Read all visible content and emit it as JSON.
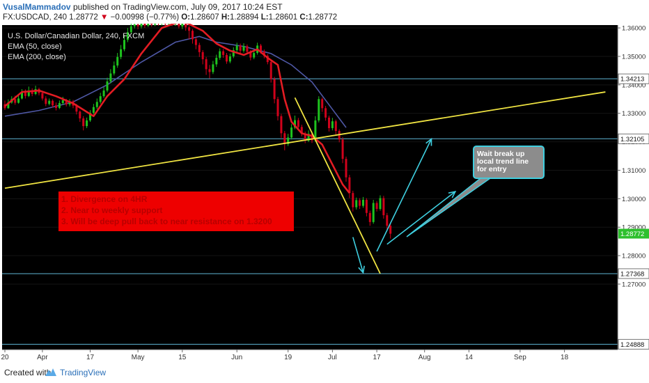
{
  "header": {
    "author": "VusalMammadov",
    "published": "published on TradingView.com, July 09, 2017 10:24 EST",
    "symbol": "FX:USDCAD, 240",
    "last": "1.28772",
    "change": "−0.00998 (−0.77%)",
    "o_label": "O:",
    "o_value": "1.28607",
    "h_label": "H:",
    "h_value": "1.28894",
    "l_label": "L:",
    "l_value": "1.28601",
    "c_label": "C:",
    "c_value": "1.28772"
  },
  "legend": {
    "instrument": "U.S. Dollar/Canadian Dollar, 240, FXCM",
    "ema50": "EMA (50, close)",
    "ema200": "EMA (200, close)"
  },
  "annotations": {
    "red_box": [
      "1. Divergence on 4HR",
      "2. Near to weekly support",
      "3. Will be deep pull back to near resistance on 1.3200"
    ],
    "note_box": [
      "Wait break up",
      "local trend line",
      "for entry"
    ]
  },
  "footer": {
    "created_with": "Created with",
    "brand": "TradingView"
  },
  "colors": {
    "background": "#000000",
    "up": "#1ec31e",
    "down": "#d0021b",
    "ema50": "#e31c23",
    "ema200": "#4f58a6",
    "trendline": "#f0e442",
    "level": "#5fb6d6",
    "arrow": "#3fcfe0",
    "note_bg": "#8c8c8c"
  },
  "chart_data": {
    "type": "candlestick",
    "ylim": [
      1.247,
      1.361
    ],
    "y_ticks": [
      1.27,
      1.28,
      1.29,
      1.3,
      1.31,
      1.32,
      1.33,
      1.34,
      1.35,
      1.36
    ],
    "y_tick_labels": [
      "1.27000",
      "1.28000",
      "1.29000",
      "1.30000",
      "1.31000",
      "1.32000",
      "1.33000",
      "1.34000",
      "1.35000",
      "1.36000"
    ],
    "x_ticks": [
      {
        "label": "20",
        "t": 0
      },
      {
        "label": "Apr",
        "t": 11
      },
      {
        "label": "17",
        "t": 25
      },
      {
        "label": "May",
        "t": 39
      },
      {
        "label": "15",
        "t": 52
      },
      {
        "label": "Jun",
        "t": 68
      },
      {
        "label": "19",
        "t": 83
      },
      {
        "label": "Jul",
        "t": 96
      },
      {
        "label": "17",
        "t": 109
      },
      {
        "label": "Aug",
        "t": 123
      },
      {
        "label": "14",
        "t": 136
      },
      {
        "label": "Sep",
        "t": 151
      },
      {
        "label": "18",
        "t": 164
      }
    ],
    "current_price": {
      "label": "1.28772",
      "value": 1.28772
    },
    "levels": [
      {
        "label": "1.34213",
        "value": 1.34213
      },
      {
        "label": "1.32105",
        "value": 1.32105
      },
      {
        "label": "1.27368",
        "value": 1.27368
      },
      {
        "label": "1.24888",
        "value": 1.24888
      }
    ],
    "trend_lines": [
      {
        "name": "support",
        "from": [
          0,
          1.3037
        ],
        "to": [
          176,
          1.3375
        ]
      },
      {
        "name": "local",
        "from": [
          85,
          1.3355
        ],
        "to": [
          110,
          1.2737
        ]
      }
    ],
    "arrows": [
      {
        "from": [
          102,
          1.2865
        ],
        "to": [
          105,
          1.274
        ]
      },
      {
        "from": [
          109,
          1.2815
        ],
        "to": [
          125,
          1.321
        ]
      },
      {
        "from": [
          112,
          1.284
        ],
        "to": [
          132,
          1.3025
        ]
      }
    ],
    "ema50": [
      [
        0,
        1.3325
      ],
      [
        5,
        1.3375
      ],
      [
        10,
        1.338
      ],
      [
        15,
        1.336
      ],
      [
        20,
        1.3335
      ],
      [
        26,
        1.329
      ],
      [
        30,
        1.336
      ],
      [
        35,
        1.342
      ],
      [
        40,
        1.351
      ],
      [
        46,
        1.36
      ],
      [
        52,
        1.3625
      ],
      [
        58,
        1.359
      ],
      [
        62,
        1.3545
      ],
      [
        66,
        1.352
      ],
      [
        70,
        1.3505
      ],
      [
        74,
        1.3525
      ],
      [
        77,
        1.3495
      ],
      [
        80,
        1.347
      ],
      [
        82,
        1.335
      ],
      [
        84,
        1.327
      ],
      [
        87,
        1.323
      ],
      [
        90,
        1.322
      ],
      [
        93,
        1.319
      ],
      [
        96,
        1.312
      ],
      [
        99,
        1.305
      ],
      [
        101,
        1.302
      ]
    ],
    "ema200": [
      [
        0,
        1.329
      ],
      [
        10,
        1.331
      ],
      [
        20,
        1.334
      ],
      [
        30,
        1.34
      ],
      [
        40,
        1.348
      ],
      [
        50,
        1.355
      ],
      [
        57,
        1.357
      ],
      [
        62,
        1.355
      ],
      [
        70,
        1.3535
      ],
      [
        78,
        1.351
      ],
      [
        84,
        1.347
      ],
      [
        90,
        1.341
      ],
      [
        95,
        1.333
      ],
      [
        100,
        1.325
      ]
    ],
    "candles": [
      [
        0,
        1.3332,
        1.3318,
        1.3345,
        1.3312
      ],
      [
        1,
        1.3318,
        1.3338,
        1.3349,
        1.3316
      ],
      [
        2,
        1.3338,
        1.335,
        1.336,
        1.3334
      ],
      [
        3,
        1.335,
        1.3337,
        1.3362,
        1.333
      ],
      [
        4,
        1.3337,
        1.3352,
        1.3364,
        1.3334
      ],
      [
        5,
        1.3352,
        1.3374,
        1.3385,
        1.3349
      ],
      [
        6,
        1.3374,
        1.3361,
        1.3384,
        1.3352
      ],
      [
        7,
        1.3361,
        1.338,
        1.3394,
        1.3357
      ],
      [
        8,
        1.338,
        1.3368,
        1.3388,
        1.336
      ],
      [
        9,
        1.3368,
        1.3385,
        1.3397,
        1.3364
      ],
      [
        10,
        1.3385,
        1.3371,
        1.339,
        1.3363
      ],
      [
        11,
        1.3371,
        1.3352,
        1.3378,
        1.3345
      ],
      [
        12,
        1.3352,
        1.3333,
        1.336,
        1.3325
      ],
      [
        13,
        1.3333,
        1.3344,
        1.3352,
        1.3328
      ],
      [
        14,
        1.3344,
        1.3328,
        1.3349,
        1.332
      ],
      [
        15,
        1.3328,
        1.3319,
        1.3338,
        1.331
      ],
      [
        16,
        1.3319,
        1.3336,
        1.3345,
        1.3315
      ],
      [
        17,
        1.3336,
        1.3346,
        1.3358,
        1.333
      ],
      [
        18,
        1.3346,
        1.3331,
        1.3351,
        1.3324
      ],
      [
        19,
        1.3331,
        1.3342,
        1.335,
        1.3324
      ],
      [
        20,
        1.3342,
        1.3327,
        1.3347,
        1.3318
      ],
      [
        21,
        1.3327,
        1.3306,
        1.3333,
        1.3296
      ],
      [
        22,
        1.3306,
        1.3282,
        1.331,
        1.327
      ],
      [
        23,
        1.3282,
        1.3255,
        1.329,
        1.324
      ],
      [
        24,
        1.3255,
        1.3275,
        1.3285,
        1.3248
      ],
      [
        25,
        1.3275,
        1.3302,
        1.3311,
        1.327
      ],
      [
        26,
        1.3302,
        1.3322,
        1.3333,
        1.3296
      ],
      [
        27,
        1.3322,
        1.334,
        1.3352,
        1.3315
      ],
      [
        28,
        1.334,
        1.336,
        1.3372,
        1.3334
      ],
      [
        29,
        1.336,
        1.338,
        1.3392,
        1.3354
      ],
      [
        30,
        1.338,
        1.3412,
        1.3425,
        1.3374
      ],
      [
        31,
        1.3412,
        1.344,
        1.3455,
        1.3405
      ],
      [
        32,
        1.344,
        1.3468,
        1.3482,
        1.3433
      ],
      [
        33,
        1.3468,
        1.3498,
        1.3512,
        1.346
      ],
      [
        34,
        1.3498,
        1.3525,
        1.354,
        1.349
      ],
      [
        35,
        1.3525,
        1.3558,
        1.3575,
        1.3518
      ],
      [
        36,
        1.3558,
        1.3585,
        1.36,
        1.355
      ],
      [
        37,
        1.3585,
        1.3606,
        1.3615,
        1.3578
      ],
      [
        38,
        1.3606,
        1.3612,
        1.3618,
        1.3598
      ],
      [
        39,
        1.3612,
        1.3605,
        1.3616,
        1.3595
      ],
      [
        40,
        1.3605,
        1.3618,
        1.3625,
        1.3598
      ],
      [
        41,
        1.3618,
        1.3608,
        1.3622,
        1.36
      ],
      [
        42,
        1.3608,
        1.362,
        1.3626,
        1.3603
      ],
      [
        43,
        1.362,
        1.3612,
        1.3624,
        1.3604
      ],
      [
        44,
        1.3612,
        1.3622,
        1.3627,
        1.3606
      ],
      [
        45,
        1.3622,
        1.3615,
        1.3628,
        1.3608
      ],
      [
        46,
        1.3615,
        1.3621,
        1.3627,
        1.3609
      ],
      [
        47,
        1.3621,
        1.3614,
        1.3626,
        1.3607
      ],
      [
        48,
        1.3614,
        1.362,
        1.3626,
        1.3609
      ],
      [
        49,
        1.362,
        1.3613,
        1.3625,
        1.3606
      ],
      [
        50,
        1.3613,
        1.3619,
        1.3624,
        1.3607
      ],
      [
        51,
        1.3619,
        1.3605,
        1.3622,
        1.3598
      ],
      [
        52,
        1.3605,
        1.3617,
        1.3623,
        1.3596
      ],
      [
        53,
        1.3617,
        1.3602,
        1.3621,
        1.359
      ],
      [
        54,
        1.3602,
        1.359,
        1.3608,
        1.356
      ],
      [
        55,
        1.359,
        1.356,
        1.3596,
        1.3545
      ],
      [
        56,
        1.356,
        1.354,
        1.3567,
        1.3525
      ],
      [
        57,
        1.354,
        1.3515,
        1.3548,
        1.3498
      ],
      [
        58,
        1.3515,
        1.349,
        1.3522,
        1.3472
      ],
      [
        59,
        1.349,
        1.3455,
        1.3498,
        1.3435
      ],
      [
        60,
        1.3455,
        1.3445,
        1.347,
        1.3423
      ],
      [
        61,
        1.3445,
        1.3472,
        1.3484,
        1.3438
      ],
      [
        62,
        1.3472,
        1.3495,
        1.3506,
        1.3463
      ],
      [
        63,
        1.3495,
        1.3518,
        1.3528,
        1.3488
      ],
      [
        64,
        1.3518,
        1.3505,
        1.3526,
        1.3495
      ],
      [
        65,
        1.3505,
        1.3482,
        1.3512,
        1.3474
      ],
      [
        66,
        1.3482,
        1.35,
        1.351,
        1.3476
      ],
      [
        67,
        1.35,
        1.3522,
        1.3532,
        1.3494
      ],
      [
        68,
        1.3522,
        1.3538,
        1.3548,
        1.3514
      ],
      [
        69,
        1.3538,
        1.352,
        1.3545,
        1.3512
      ],
      [
        70,
        1.352,
        1.3536,
        1.3546,
        1.3513
      ],
      [
        71,
        1.3536,
        1.3516,
        1.3542,
        1.3508
      ],
      [
        72,
        1.3516,
        1.3496,
        1.3522,
        1.3486
      ],
      [
        73,
        1.3496,
        1.3512,
        1.3522,
        1.349
      ],
      [
        74,
        1.3512,
        1.3538,
        1.3548,
        1.3506
      ],
      [
        75,
        1.3538,
        1.3518,
        1.3544,
        1.3509
      ],
      [
        76,
        1.3518,
        1.3502,
        1.3524,
        1.3493
      ],
      [
        77,
        1.3502,
        1.348,
        1.3508,
        1.3472
      ],
      [
        78,
        1.348,
        1.342,
        1.3488,
        1.3408
      ],
      [
        79,
        1.342,
        1.335,
        1.3428,
        1.3335
      ],
      [
        80,
        1.335,
        1.329,
        1.3358,
        1.3275
      ],
      [
        81,
        1.329,
        1.323,
        1.3298,
        1.3214
      ],
      [
        82,
        1.323,
        1.3192,
        1.3238,
        1.317
      ],
      [
        83,
        1.3192,
        1.3215,
        1.3228,
        1.3185
      ],
      [
        84,
        1.3215,
        1.325,
        1.3262,
        1.3208
      ],
      [
        85,
        1.325,
        1.3276,
        1.3292,
        1.3244
      ],
      [
        86,
        1.3276,
        1.3252,
        1.3284,
        1.3244
      ],
      [
        87,
        1.3252,
        1.3228,
        1.326,
        1.3219
      ],
      [
        88,
        1.3228,
        1.3204,
        1.3236,
        1.3195
      ],
      [
        89,
        1.3204,
        1.3228,
        1.324,
        1.3199
      ],
      [
        90,
        1.3228,
        1.3205,
        1.3236,
        1.3196
      ],
      [
        91,
        1.3205,
        1.3275,
        1.329,
        1.32
      ],
      [
        92,
        1.3275,
        1.335,
        1.336,
        1.3268
      ],
      [
        93,
        1.335,
        1.3318,
        1.3355,
        1.3305
      ],
      [
        94,
        1.3318,
        1.3285,
        1.3326,
        1.3274
      ],
      [
        95,
        1.3285,
        1.3248,
        1.3292,
        1.3236
      ],
      [
        96,
        1.3248,
        1.3272,
        1.3284,
        1.324
      ],
      [
        97,
        1.3272,
        1.3238,
        1.3278,
        1.3226
      ],
      [
        98,
        1.3238,
        1.3208,
        1.3244,
        1.3198
      ],
      [
        99,
        1.3208,
        1.314,
        1.3216,
        1.3125
      ],
      [
        100,
        1.314,
        1.3075,
        1.3148,
        1.306
      ],
      [
        101,
        1.3075,
        1.302,
        1.3084,
        1.3002
      ],
      [
        102,
        1.302,
        1.297,
        1.3028,
        1.2955
      ],
      [
        103,
        1.297,
        1.2995,
        1.3004,
        1.2962
      ],
      [
        104,
        1.2995,
        1.2975,
        1.3002,
        1.2964
      ],
      [
        105,
        1.2975,
        1.2996,
        1.3006,
        1.2968
      ],
      [
        106,
        1.2996,
        1.295,
        1.3002,
        1.2938
      ],
      [
        107,
        1.295,
        1.2918,
        1.2958,
        1.2905
      ],
      [
        108,
        1.2918,
        1.2985,
        1.2996,
        1.2912
      ],
      [
        109,
        1.2985,
        1.2964,
        1.2992,
        1.2955
      ],
      [
        110,
        1.2964,
        1.3002,
        1.3012,
        1.2958
      ],
      [
        111,
        1.3002,
        1.2942,
        1.301,
        1.293
      ],
      [
        112,
        1.2942,
        1.2905,
        1.295,
        1.2892
      ],
      [
        113,
        1.2905,
        1.2877,
        1.2915,
        1.286
      ]
    ]
  }
}
